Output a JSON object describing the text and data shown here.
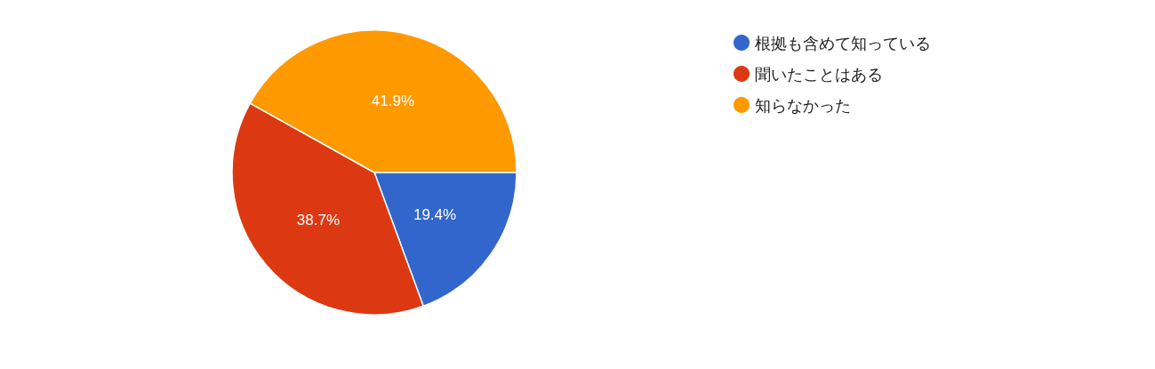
{
  "chart_data": {
    "type": "pie",
    "categories": [
      "根拠も含めて知っている",
      "聞いたことはある",
      "知らなかった"
    ],
    "values": [
      19.4,
      38.7,
      41.9
    ],
    "colors": [
      "#3366cc",
      "#dc3912",
      "#ff9900"
    ],
    "value_labels": [
      "19.4%",
      "38.7%",
      "41.9%"
    ],
    "legend": "top right"
  }
}
